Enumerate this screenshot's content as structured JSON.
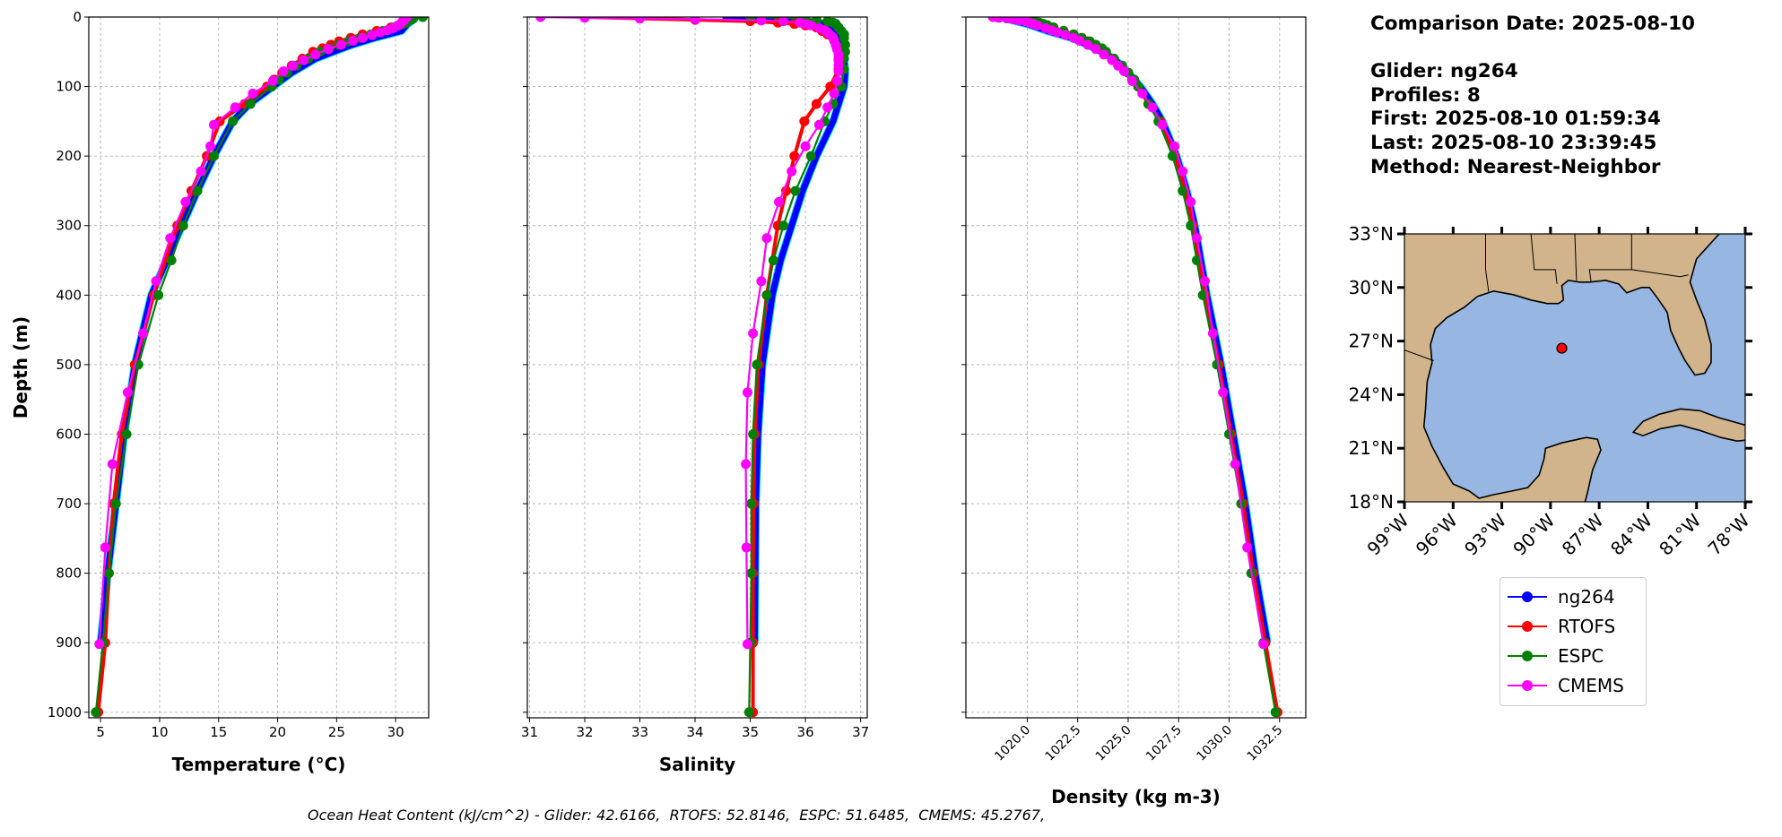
{
  "info": {
    "comparison_date": "Comparison Date: 2025-08-10",
    "glider": "Glider: ng264",
    "profiles": "Profiles: 8",
    "first": "First: 2025-08-10 01:59:34",
    "last": "Last: 2025-08-10 23:39:45",
    "method": "Method: Nearest-Neighbor"
  },
  "footer": "Ocean Heat Content (kJ/cm^2) - Glider: 42.6166,  RTOFS: 52.8146,  ESPC: 51.6485,  CMEMS: 45.2767,",
  "legend": [
    {
      "label": "ng264",
      "color": "#0000ff"
    },
    {
      "label": "RTOFS",
      "color": "#ff0000"
    },
    {
      "label": "ESPC",
      "color": "#008000"
    },
    {
      "label": "CMEMS",
      "color": "#ff00ff"
    }
  ],
  "chart_data": [
    {
      "type": "line",
      "id": "temperature",
      "xlabel": "Temperature (°C)",
      "ylabel": "Depth (m)",
      "xlim": [
        4.0,
        32.8
      ],
      "ylim": [
        1008,
        0
      ],
      "xticks": [
        5,
        10,
        15,
        20,
        25,
        30
      ],
      "xtick_labels": [
        "5",
        "10",
        "15",
        "20",
        "25",
        "30"
      ],
      "yticks": [
        0,
        100,
        200,
        300,
        400,
        500,
        600,
        700,
        800,
        900,
        1000
      ],
      "ytick_labels": [
        "0",
        "100",
        "200",
        "300",
        "400",
        "500",
        "600",
        "700",
        "800",
        "900",
        "1000"
      ],
      "grid": true,
      "series": [
        {
          "name": "ng264",
          "color": "#0000ff",
          "depth": [
            0,
            5,
            10,
            20,
            30,
            40,
            50,
            60,
            80,
            100,
            125,
            150,
            200,
            250,
            300,
            350,
            400,
            450,
            500,
            600,
            700,
            800,
            900
          ],
          "values": [
            31.5,
            31.4,
            31.0,
            30.5,
            28.2,
            26.3,
            24.7,
            23.2,
            21.2,
            19.6,
            17.6,
            16.2,
            14.6,
            13.2,
            11.9,
            10.6,
            9.3,
            8.6,
            7.9,
            7.0,
            6.3,
            5.6,
            5.0
          ]
        },
        {
          "name": "RTOFS",
          "color": "#ff0000",
          "depth": [
            0,
            2,
            4,
            6,
            8,
            10,
            12,
            15,
            20,
            25,
            30,
            35,
            40,
            45,
            50,
            60,
            70,
            80,
            90,
            100,
            125,
            150,
            200,
            250,
            300,
            400,
            500,
            600,
            700,
            800,
            900,
            1000
          ],
          "values": [
            31.3,
            31.2,
            31.1,
            31.0,
            30.9,
            30.6,
            30.3,
            29.6,
            28.4,
            27.2,
            26.2,
            25.2,
            24.5,
            23.8,
            23.0,
            22.1,
            21.2,
            20.4,
            19.7,
            19.1,
            17.2,
            15.1,
            14.0,
            12.7,
            11.5,
            9.5,
            7.9,
            6.8,
            6.1,
            5.7,
            5.4,
            4.8
          ]
        },
        {
          "name": "ESPC",
          "color": "#008000",
          "depth": [
            0,
            2,
            4,
            6,
            8,
            10,
            12,
            15,
            20,
            25,
            30,
            35,
            40,
            45,
            50,
            60,
            70,
            80,
            90,
            100,
            125,
            150,
            200,
            250,
            300,
            350,
            400,
            500,
            600,
            700,
            800,
            900,
            1000
          ],
          "values": [
            32.3,
            31.5,
            31.3,
            31.1,
            30.9,
            30.6,
            30.3,
            29.8,
            28.9,
            27.9,
            27.0,
            26.0,
            25.2,
            24.4,
            23.6,
            22.6,
            21.6,
            20.8,
            20.1,
            19.5,
            17.7,
            16.2,
            14.6,
            13.2,
            12.0,
            11.0,
            9.9,
            8.2,
            7.2,
            6.3,
            5.7,
            5.2,
            4.6
          ]
        },
        {
          "name": "CMEMS",
          "color": "#ff00ff",
          "depth": [
            0,
            1,
            2,
            3,
            5,
            6,
            8,
            10,
            12,
            16,
            19,
            22,
            26,
            30,
            34,
            40,
            46,
            54,
            62,
            70,
            78,
            92,
            110,
            130,
            155,
            186,
            222,
            266,
            318,
            380,
            455,
            540,
            643,
            763,
            902
          ],
          "values": [
            31.0,
            30.9,
            30.8,
            30.8,
            30.7,
            30.6,
            30.5,
            30.4,
            30.2,
            29.8,
            29.3,
            28.7,
            28.0,
            27.2,
            26.4,
            25.4,
            24.3,
            23.2,
            22.2,
            21.3,
            20.5,
            19.6,
            17.9,
            16.4,
            14.6,
            14.3,
            13.5,
            12.2,
            10.9,
            9.7,
            8.6,
            7.3,
            6.0,
            5.4,
            4.9
          ]
        }
      ]
    },
    {
      "type": "line",
      "id": "salinity",
      "xlabel": "Salinity",
      "ylabel": "",
      "xlim": [
        30.96,
        37.12
      ],
      "ylim": [
        1008,
        0
      ],
      "xticks": [
        31,
        32,
        33,
        34,
        35,
        36,
        37
      ],
      "xtick_labels": [
        "31",
        "32",
        "33",
        "34",
        "35",
        "36",
        "37"
      ],
      "yticks": [
        0,
        100,
        200,
        300,
        400,
        500,
        600,
        700,
        800,
        900,
        1000
      ],
      "grid": true,
      "series": [
        {
          "name": "ng264",
          "color": "#0000ff",
          "depth": [
            0,
            3,
            6,
            10,
            20,
            30,
            40,
            60,
            80,
            100,
            125,
            150,
            200,
            250,
            300,
            350,
            400,
            500,
            600,
            700,
            800,
            900
          ],
          "values": [
            34.5,
            35.5,
            36.0,
            36.3,
            36.5,
            36.6,
            36.65,
            36.7,
            36.72,
            36.7,
            36.6,
            36.5,
            36.2,
            35.95,
            35.75,
            35.55,
            35.4,
            35.22,
            35.14,
            35.1,
            35.09,
            35.08
          ]
        },
        {
          "name": "RTOFS",
          "color": "#ff0000",
          "depth": [
            0,
            2,
            4,
            6,
            8,
            10,
            12,
            15,
            20,
            25,
            30,
            40,
            50,
            60,
            75,
            100,
            125,
            150,
            200,
            250,
            300,
            400,
            500,
            600,
            700,
            800,
            900,
            1000
          ],
          "values": [
            32.0,
            33.0,
            34.0,
            35.0,
            35.5,
            35.8,
            36.0,
            36.2,
            36.3,
            36.4,
            36.5,
            36.55,
            36.6,
            36.6,
            36.6,
            36.45,
            36.2,
            35.98,
            35.8,
            35.65,
            35.5,
            35.3,
            35.15,
            35.08,
            35.06,
            35.05,
            35.05,
            35.05
          ]
        },
        {
          "name": "ESPC",
          "color": "#008000",
          "depth": [
            0,
            2,
            4,
            6,
            8,
            10,
            15,
            20,
            25,
            30,
            40,
            50,
            60,
            75,
            100,
            125,
            150,
            200,
            250,
            300,
            350,
            400,
            500,
            600,
            700,
            800,
            900,
            1000
          ],
          "values": [
            35.0,
            36.0,
            36.2,
            36.4,
            36.5,
            36.55,
            36.6,
            36.65,
            36.7,
            36.7,
            36.72,
            36.72,
            36.7,
            36.7,
            36.65,
            36.5,
            36.35,
            36.1,
            35.82,
            35.6,
            35.42,
            35.3,
            35.12,
            35.05,
            35.02,
            35.02,
            35.0,
            34.98
          ]
        },
        {
          "name": "CMEMS",
          "color": "#ff00ff",
          "depth": [
            0,
            1,
            2,
            3,
            5,
            6,
            8,
            10,
            12,
            16,
            19,
            22,
            26,
            30,
            34,
            40,
            46,
            54,
            62,
            70,
            78,
            92,
            110,
            130,
            155,
            186,
            222,
            266,
            318,
            380,
            455,
            540,
            643,
            763,
            902
          ],
          "values": [
            31.2,
            32.0,
            33.0,
            34.0,
            35.2,
            35.6,
            35.9,
            36.0,
            36.1,
            36.25,
            36.35,
            36.4,
            36.45,
            36.5,
            36.52,
            36.55,
            36.57,
            36.6,
            36.6,
            36.6,
            36.6,
            36.58,
            36.52,
            36.4,
            36.25,
            36.0,
            35.75,
            35.52,
            35.3,
            35.2,
            35.05,
            34.95,
            34.92,
            34.93,
            34.95
          ]
        }
      ]
    },
    {
      "type": "line",
      "id": "density",
      "xlabel": "Density (kg m-3)",
      "ylabel": "",
      "xlim": [
        1016.96,
        1033.8
      ],
      "ylim": [
        1008,
        0
      ],
      "xticks": [
        1020.0,
        1022.5,
        1025.0,
        1027.5,
        1030.0,
        1032.5
      ],
      "xtick_labels": [
        "1020.0",
        "1022.5",
        "1025.0",
        "1027.5",
        "1030.0",
        "1032.5"
      ],
      "yticks": [
        0,
        100,
        200,
        300,
        400,
        500,
        600,
        700,
        800,
        900,
        1000
      ],
      "grid": true,
      "series": [
        {
          "name": "ng264",
          "color": "#0000ff",
          "depth": [
            0,
            5,
            10,
            20,
            30,
            40,
            50,
            60,
            80,
            100,
            125,
            150,
            200,
            250,
            300,
            400,
            500,
            600,
            700,
            800,
            900
          ],
          "values": [
            1018.7,
            1019.3,
            1020.0,
            1021.0,
            1022.2,
            1023.0,
            1023.7,
            1024.3,
            1025.0,
            1025.6,
            1026.2,
            1026.7,
            1027.4,
            1027.9,
            1028.3,
            1028.9,
            1029.6,
            1030.2,
            1030.8,
            1031.3,
            1031.9
          ]
        },
        {
          "name": "RTOFS",
          "color": "#ff0000",
          "depth": [
            0,
            2,
            4,
            6,
            8,
            10,
            12,
            15,
            20,
            25,
            30,
            35,
            40,
            45,
            50,
            60,
            70,
            80,
            90,
            100,
            125,
            150,
            200,
            250,
            300,
            400,
            500,
            600,
            700,
            800,
            900,
            1000
          ],
          "values": [
            1018.5,
            1019.0,
            1019.5,
            1020.2,
            1020.5,
            1020.8,
            1021.0,
            1021.3,
            1021.8,
            1022.3,
            1022.7,
            1023.0,
            1023.3,
            1023.6,
            1023.9,
            1024.3,
            1024.7,
            1025.0,
            1025.2,
            1025.5,
            1026.0,
            1026.6,
            1027.3,
            1027.8,
            1028.2,
            1028.8,
            1029.5,
            1030.1,
            1030.7,
            1031.2,
            1031.8,
            1032.4
          ]
        },
        {
          "name": "ESPC",
          "color": "#008000",
          "depth": [
            0,
            2,
            4,
            6,
            8,
            10,
            12,
            15,
            20,
            25,
            30,
            35,
            40,
            45,
            50,
            60,
            70,
            80,
            90,
            100,
            125,
            150,
            200,
            250,
            300,
            350,
            400,
            500,
            600,
            700,
            800,
            900,
            1000
          ],
          "values": [
            1019.6,
            1020.0,
            1020.2,
            1020.4,
            1020.6,
            1020.8,
            1021.0,
            1021.3,
            1021.8,
            1022.3,
            1022.7,
            1023.1,
            1023.4,
            1023.7,
            1023.9,
            1024.3,
            1024.7,
            1025.0,
            1025.3,
            1025.5,
            1026.0,
            1026.5,
            1027.2,
            1027.7,
            1028.1,
            1028.4,
            1028.7,
            1029.4,
            1030.0,
            1030.6,
            1031.1,
            1031.7,
            1032.3
          ]
        },
        {
          "name": "CMEMS",
          "color": "#ff00ff",
          "depth": [
            0,
            1,
            2,
            3,
            5,
            6,
            8,
            10,
            12,
            16,
            19,
            22,
            26,
            30,
            34,
            40,
            46,
            54,
            62,
            70,
            78,
            92,
            110,
            130,
            155,
            186,
            222,
            266,
            318,
            380,
            455,
            540,
            643,
            763,
            902
          ],
          "values": [
            1018.3,
            1018.6,
            1019.0,
            1019.3,
            1019.6,
            1019.9,
            1020.1,
            1020.3,
            1020.5,
            1020.9,
            1021.2,
            1021.5,
            1021.9,
            1022.3,
            1022.6,
            1023.0,
            1023.4,
            1023.8,
            1024.2,
            1024.5,
            1024.8,
            1025.2,
            1025.7,
            1026.2,
            1026.7,
            1027.3,
            1027.7,
            1028.1,
            1028.4,
            1028.8,
            1029.2,
            1029.7,
            1030.3,
            1030.9,
            1031.7
          ]
        }
      ]
    },
    {
      "type": "scatter",
      "id": "map",
      "xlim": [
        -99,
        -78
      ],
      "ylim": [
        18,
        33
      ],
      "lat_ticks": [
        18,
        21,
        24,
        27,
        30,
        33
      ],
      "lat_labels": [
        "18°N",
        "21°N",
        "24°N",
        "27°N",
        "30°N",
        "33°N"
      ],
      "lon_ticks": [
        -99,
        -96,
        -93,
        -90,
        -87,
        -84,
        -81,
        -78
      ],
      "lon_labels": [
        "99°W",
        "96°W",
        "93°W",
        "90°W",
        "87°W",
        "84°W",
        "81°W",
        "78°W"
      ],
      "points": [
        {
          "name": "ng264",
          "lon": -89.3,
          "lat": 26.6,
          "color": "#ff0000"
        }
      ],
      "land_color": "#d2b48c",
      "ocean_color": "#97b6e1"
    }
  ]
}
